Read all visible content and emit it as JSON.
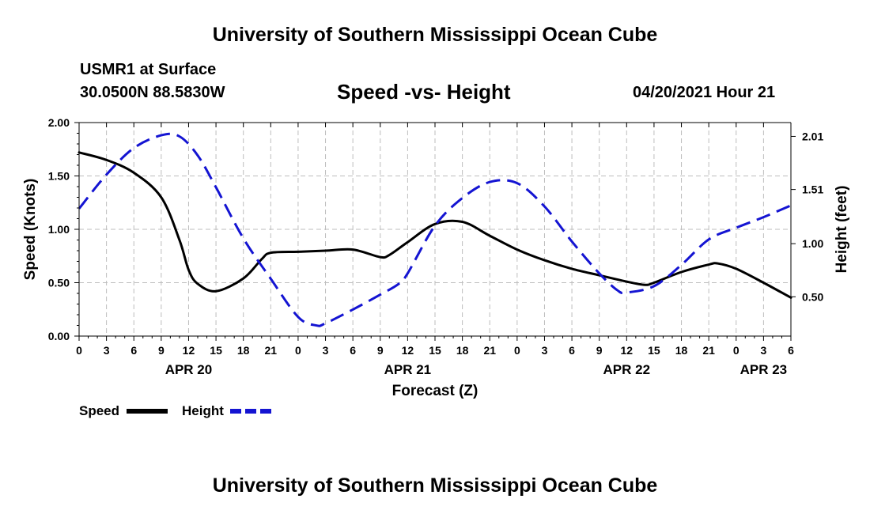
{
  "header": {
    "title": "University of Southern Mississippi Ocean Cube",
    "station": "USMR1 at Surface",
    "coords": "30.0500N  88.5830W",
    "chart_title": "Speed -vs- Height",
    "datetime": "04/20/2021 Hour 21"
  },
  "footer": {
    "title": "University of Southern Mississippi Ocean Cube"
  },
  "chart_data": {
    "type": "line",
    "title": "Speed -vs- Height",
    "xlabel": "Forecast (Z)",
    "ylabel_left": "Speed (Knots)",
    "ylabel_right": "Height (feet)",
    "x_range": [
      0,
      78
    ],
    "x_ticks": [
      0,
      3,
      6,
      9,
      12,
      15,
      18,
      21,
      24,
      27,
      30,
      33,
      36,
      39,
      42,
      45,
      48,
      51,
      54,
      57,
      60,
      63,
      66,
      69,
      72,
      75,
      78
    ],
    "x_tick_labels": [
      "0",
      "3",
      "6",
      "9",
      "12",
      "15",
      "18",
      "21",
      "0",
      "3",
      "6",
      "9",
      "12",
      "15",
      "18",
      "21",
      "0",
      "3",
      "6",
      "9",
      "12",
      "15",
      "18",
      "21",
      "0",
      "3",
      "6"
    ],
    "day_labels": [
      {
        "x": 12,
        "label": "APR 20"
      },
      {
        "x": 36,
        "label": "APR 21"
      },
      {
        "x": 60,
        "label": "APR 22"
      },
      {
        "x": 75,
        "label": "APR 23"
      }
    ],
    "y_left": {
      "range": [
        0,
        2
      ],
      "ticks": [
        0,
        0.5,
        1,
        1.5,
        2
      ],
      "tick_labels": [
        "0.00",
        "0.50",
        "1.00",
        "1.50",
        "2.00"
      ]
    },
    "y_right": {
      "range": [
        0.13,
        2.14
      ],
      "ticks": [
        0.5,
        1.0,
        1.51,
        2.01
      ],
      "tick_labels": [
        "0.50",
        "1.00",
        "1.51",
        "2.01"
      ]
    },
    "grid": true,
    "legend_position": "bottom-left",
    "series": [
      {
        "name": "Speed",
        "axis": "left",
        "color": "#000000",
        "style": "solid",
        "points": [
          [
            0,
            1.72
          ],
          [
            3,
            1.65
          ],
          [
            6,
            1.53
          ],
          [
            9,
            1.3
          ],
          [
            11,
            0.9
          ],
          [
            12,
            0.62
          ],
          [
            13,
            0.49
          ],
          [
            15,
            0.42
          ],
          [
            18,
            0.54
          ],
          [
            20,
            0.72
          ],
          [
            21,
            0.78
          ],
          [
            24,
            0.79
          ],
          [
            27,
            0.8
          ],
          [
            30,
            0.81
          ],
          [
            33,
            0.74
          ],
          [
            34,
            0.76
          ],
          [
            36,
            0.88
          ],
          [
            39,
            1.05
          ],
          [
            42,
            1.07
          ],
          [
            45,
            0.94
          ],
          [
            48,
            0.81
          ],
          [
            51,
            0.71
          ],
          [
            54,
            0.63
          ],
          [
            57,
            0.57
          ],
          [
            60,
            0.51
          ],
          [
            62,
            0.48
          ],
          [
            63,
            0.5
          ],
          [
            66,
            0.6
          ],
          [
            69,
            0.67
          ],
          [
            70,
            0.68
          ],
          [
            72,
            0.63
          ],
          [
            75,
            0.5
          ],
          [
            78,
            0.36
          ]
        ]
      },
      {
        "name": "Height",
        "axis": "right",
        "color": "#1414d2",
        "style": "dashed",
        "points": [
          [
            0,
            1.33
          ],
          [
            3,
            1.65
          ],
          [
            6,
            1.9
          ],
          [
            9,
            2.02
          ],
          [
            11,
            2.01
          ],
          [
            13,
            1.83
          ],
          [
            15,
            1.53
          ],
          [
            18,
            1.05
          ],
          [
            21,
            0.67
          ],
          [
            24,
            0.31
          ],
          [
            26,
            0.23
          ],
          [
            27,
            0.25
          ],
          [
            30,
            0.38
          ],
          [
            33,
            0.52
          ],
          [
            35,
            0.62
          ],
          [
            36,
            0.72
          ],
          [
            39,
            1.17
          ],
          [
            42,
            1.43
          ],
          [
            45,
            1.58
          ],
          [
            48,
            1.57
          ],
          [
            51,
            1.35
          ],
          [
            54,
            1.02
          ],
          [
            57,
            0.72
          ],
          [
            59,
            0.56
          ],
          [
            60,
            0.54
          ],
          [
            63,
            0.6
          ],
          [
            66,
            0.8
          ],
          [
            69,
            1.04
          ],
          [
            72,
            1.15
          ],
          [
            75,
            1.25
          ],
          [
            78,
            1.36
          ]
        ]
      }
    ]
  }
}
